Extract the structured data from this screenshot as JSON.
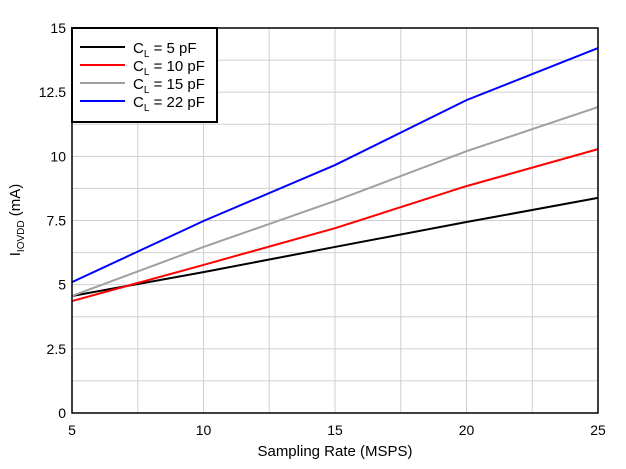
{
  "chart_data": {
    "type": "line",
    "title": "",
    "xlabel": "Sampling Rate (MSPS)",
    "ylabel_main": "I",
    "ylabel_sub": "IOVDD",
    "ylabel_unit": " (mA)",
    "xlim": [
      5,
      25
    ],
    "ylim": [
      0,
      15
    ],
    "xticks": [
      "5",
      "10",
      "15",
      "20",
      "25"
    ],
    "xtick_values": [
      5,
      10,
      15,
      20,
      25
    ],
    "yticks": [
      "0",
      "2.5",
      "5",
      "7.5",
      "10",
      "12.5",
      "15"
    ],
    "ytick_values": [
      0,
      2.5,
      5,
      7.5,
      10,
      12.5,
      15
    ],
    "grid": true,
    "legend_position": "top-left",
    "x": [
      5,
      10,
      15,
      20,
      25
    ],
    "series": [
      {
        "name_main": "C",
        "name_sub": "L",
        "name_rest": " = 5 pF",
        "color": "#000000",
        "values": [
          4.56,
          5.49,
          6.47,
          7.44,
          8.38
        ]
      },
      {
        "name_main": "C",
        "name_sub": "L",
        "name_rest": " = 10 pF",
        "color": "#ff0000",
        "values": [
          4.36,
          5.77,
          7.2,
          8.84,
          10.28
        ]
      },
      {
        "name_main": "C",
        "name_sub": "L",
        "name_rest": " = 15 pF",
        "color": "#a0a0a0",
        "values": [
          4.56,
          6.47,
          8.26,
          10.2,
          11.92
        ]
      },
      {
        "name_main": "C",
        "name_sub": "L",
        "name_rest": " = 22 pF",
        "color": "#0000ff",
        "values": [
          5.1,
          7.48,
          9.66,
          12.19,
          14.22
        ]
      }
    ]
  }
}
